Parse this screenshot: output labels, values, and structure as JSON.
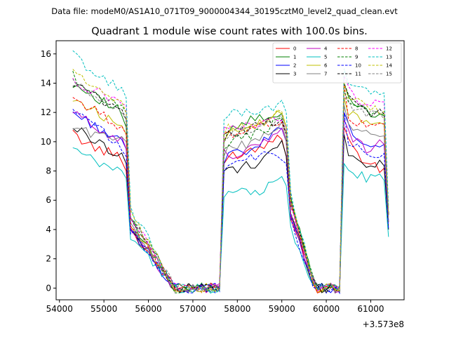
{
  "figure": {
    "suptitle": "Data file: modeM0/AS1A10_071T09_9000004344_30195cztM0_level2_quad_clean.evt",
    "axis_offset_label": "+3.573e8"
  },
  "chart_data": {
    "type": "line",
    "title": "Quadrant 1 module wise count rates with 100.0s bins.",
    "xlabel": "",
    "ylabel": "",
    "x_offset": 357300000,
    "xlim": [
      53925,
      61750
    ],
    "ylim": [
      -0.8,
      16.9
    ],
    "xticks": [
      54000,
      55000,
      56000,
      57000,
      58000,
      59000,
      60000,
      61000
    ],
    "xtick_labels": [
      "54000",
      "55000",
      "56000",
      "57000",
      "58000",
      "59000",
      "60000",
      "61000"
    ],
    "yticks": [
      0,
      2,
      4,
      6,
      8,
      10,
      12,
      14,
      16
    ],
    "ytick_labels": [
      "0",
      "2",
      "4",
      "6",
      "8",
      "10",
      "12",
      "14",
      "16"
    ],
    "grid": false,
    "legend_position": "top-right",
    "segments": [
      {
        "start": 54300,
        "n": 13,
        "step": 100
      },
      {
        "start": 55600,
        "n": 22,
        "step": 100
      },
      {
        "start": 57800,
        "n": 14,
        "step": 100
      },
      {
        "start": 59200,
        "n": 13,
        "step": 100
      },
      {
        "start": 60500,
        "n": 10,
        "step": 100
      }
    ],
    "series": [
      {
        "name": "0",
        "color": "#ff0000",
        "dash": "solid",
        "levels": [
          10.5,
          9.5,
          9.0,
          8.0,
          4.0,
          0.0,
          0.0,
          8.5,
          9.0,
          9.5,
          10.5,
          9.0,
          5.0,
          0.0,
          0.0,
          11.0,
          10.0,
          8.5,
          8.0,
          5.0
        ]
      },
      {
        "name": "1",
        "color": "#008000",
        "dash": "solid",
        "levels": [
          14.0,
          13.0,
          12.0,
          11.0,
          4.5,
          0.0,
          0.0,
          10.5,
          11.0,
          11.5,
          12.0,
          11.0,
          6.0,
          0.0,
          0.0,
          14.0,
          13.0,
          12.0,
          12.0,
          5.0
        ]
      },
      {
        "name": "2",
        "color": "#0000ff",
        "dash": "solid",
        "levels": [
          12.0,
          11.0,
          10.0,
          9.5,
          4.0,
          0.0,
          0.0,
          8.5,
          9.0,
          9.5,
          11.0,
          10.0,
          5.0,
          0.0,
          0.0,
          12.0,
          11.0,
          9.5,
          9.5,
          4.5
        ]
      },
      {
        "name": "3",
        "color": "#000000",
        "dash": "solid",
        "levels": [
          11.0,
          10.0,
          9.0,
          8.5,
          4.0,
          0.0,
          0.0,
          8.0,
          8.0,
          8.5,
          10.0,
          9.0,
          5.0,
          0.0,
          0.0,
          10.5,
          9.0,
          8.5,
          8.5,
          4.0
        ]
      },
      {
        "name": "4",
        "color": "#bf00bf",
        "dash": "solid",
        "levels": [
          12.0,
          11.0,
          10.0,
          9.5,
          4.0,
          0.0,
          0.0,
          9.5,
          9.0,
          9.5,
          11.0,
          10.0,
          5.0,
          0.0,
          0.0,
          11.5,
          10.5,
          9.5,
          10.0,
          4.5
        ]
      },
      {
        "name": "5",
        "color": "#00bfbf",
        "dash": "solid",
        "levels": [
          9.5,
          8.5,
          8.0,
          7.5,
          3.5,
          0.0,
          0.0,
          6.2,
          6.5,
          6.5,
          7.5,
          7.0,
          4.0,
          0.0,
          0.0,
          8.5,
          8.0,
          7.5,
          7.5,
          3.5
        ]
      },
      {
        "name": "6",
        "color": "#bfbf00",
        "dash": "solid",
        "levels": [
          13.0,
          12.0,
          11.0,
          10.5,
          4.5,
          0.0,
          0.0,
          10.0,
          10.5,
          11.0,
          12.0,
          11.0,
          6.0,
          0.0,
          0.0,
          13.0,
          12.0,
          11.5,
          11.5,
          5.0
        ]
      },
      {
        "name": "7",
        "color": "#808080",
        "dash": "solid",
        "levels": [
          11.0,
          10.5,
          10.0,
          10.0,
          4.5,
          0.0,
          0.0,
          9.0,
          9.5,
          10.0,
          11.0,
          10.0,
          5.5,
          0.0,
          0.0,
          12.5,
          11.0,
          10.5,
          10.5,
          4.5
        ]
      },
      {
        "name": "8",
        "color": "#ff0000",
        "dash": "dashed",
        "levels": [
          13.0,
          12.0,
          11.0,
          10.5,
          4.5,
          0.0,
          0.0,
          10.5,
          10.5,
          11.0,
          11.5,
          10.5,
          5.5,
          0.0,
          0.0,
          14.0,
          11.5,
          11.0,
          11.0,
          5.0
        ]
      },
      {
        "name": "9",
        "color": "#008000",
        "dash": "dashed",
        "levels": [
          14.5,
          13.0,
          12.5,
          12.0,
          5.0,
          0.0,
          0.0,
          9.5,
          10.0,
          10.5,
          11.5,
          10.5,
          6.0,
          0.0,
          0.0,
          13.5,
          13.0,
          12.0,
          12.0,
          5.0
        ]
      },
      {
        "name": "10",
        "color": "#0000ff",
        "dash": "dashed",
        "levels": [
          12.0,
          11.0,
          9.5,
          9.0,
          4.0,
          0.0,
          0.0,
          8.0,
          8.5,
          9.0,
          9.0,
          8.5,
          4.5,
          0.0,
          0.0,
          12.0,
          10.0,
          9.0,
          9.0,
          4.0
        ]
      },
      {
        "name": "11",
        "color": "#000000",
        "dash": "dashed",
        "levels": [
          14.0,
          13.0,
          12.0,
          11.5,
          5.0,
          0.0,
          0.0,
          10.0,
          10.5,
          11.0,
          11.5,
          10.5,
          6.0,
          0.0,
          0.0,
          14.0,
          13.0,
          12.0,
          12.0,
          5.0
        ]
      },
      {
        "name": "12",
        "color": "#ff00ff",
        "dash": "dashed",
        "levels": [
          14.0,
          13.5,
          12.5,
          12.5,
          5.0,
          0.0,
          0.0,
          11.0,
          11.0,
          11.0,
          11.5,
          11.0,
          6.0,
          0.0,
          0.0,
          14.5,
          13.5,
          12.5,
          12.5,
          5.0
        ]
      },
      {
        "name": "13",
        "color": "#00bfbf",
        "dash": "dashed",
        "levels": [
          16.0,
          14.5,
          13.5,
          13.0,
          5.5,
          0.0,
          0.0,
          11.5,
          12.0,
          12.0,
          12.5,
          12.0,
          6.5,
          0.0,
          0.0,
          15.0,
          14.0,
          13.5,
          13.0,
          5.5
        ]
      },
      {
        "name": "14",
        "color": "#bfbf00",
        "dash": "dashed",
        "levels": [
          15.0,
          13.5,
          12.5,
          12.0,
          5.0,
          0.0,
          0.0,
          10.5,
          11.0,
          11.0,
          12.0,
          11.0,
          6.0,
          0.0,
          0.0,
          14.0,
          13.0,
          12.5,
          12.0,
          5.0
        ]
      },
      {
        "name": "15",
        "color": "#808080",
        "dash": "dashed",
        "levels": [
          14.0,
          13.0,
          12.0,
          11.5,
          5.0,
          0.0,
          0.0,
          10.0,
          10.5,
          11.0,
          11.5,
          10.5,
          5.5,
          0.0,
          0.0,
          13.0,
          12.5,
          12.0,
          11.5,
          5.0
        ]
      }
    ]
  }
}
